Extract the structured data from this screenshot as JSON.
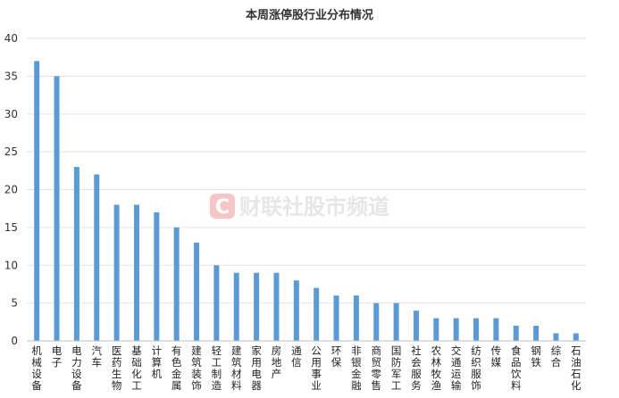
{
  "chart_data": {
    "type": "bar",
    "title": "本周涨停股行业分布情况",
    "xlabel": "",
    "ylabel": "",
    "ylim": [
      0,
      40
    ],
    "yticks": [
      0,
      5,
      10,
      15,
      20,
      25,
      30,
      35,
      40
    ],
    "grid": true,
    "bar_color": "#5b9bd5",
    "categories": [
      "机械设备",
      "电子",
      "电力设备",
      "汽车",
      "医药生物",
      "基础化工",
      "计算机",
      "有色金属",
      "建筑装饰",
      "轻工制造",
      "建筑材料",
      "家用电器",
      "房地产",
      "通信",
      "公用事业",
      "环保",
      "非银金融",
      "商贸零售",
      "国防军工",
      "社会服务",
      "农林牧渔",
      "交通运输",
      "纺织服饰",
      "传媒",
      "食品饮料",
      "钢铁",
      "综合",
      "石油石化"
    ],
    "values": [
      37,
      35,
      23,
      22,
      18,
      18,
      17,
      15,
      13,
      10,
      9,
      9,
      9,
      8,
      7,
      6,
      6,
      5,
      5,
      4,
      3,
      3,
      3,
      3,
      2,
      2,
      1,
      1
    ]
  },
  "watermark": {
    "text": "财联社股市频道",
    "logo_letter": "C",
    "color": "#f5c6c6"
  }
}
